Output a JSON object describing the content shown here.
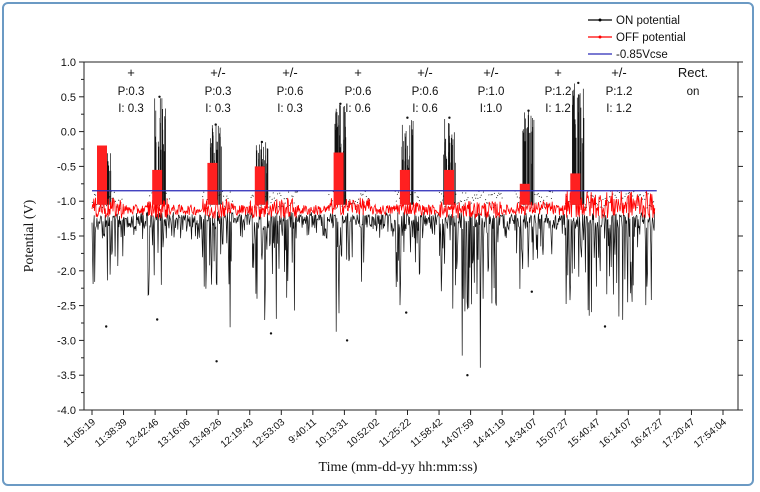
{
  "chart_data": {
    "type": "line",
    "xlabel": "Time (mm-dd-yy hh:mm:ss)",
    "ylabel": "Potential (V)",
    "ylim": [
      -4.0,
      1.0
    ],
    "yticks": [
      "1.0",
      "0.5",
      "0.0",
      "-0.5",
      "-1.0",
      "-1.5",
      "-2.0",
      "-2.5",
      "-3.0",
      "-3.5",
      "-4.0"
    ],
    "categories": [
      "11:05:19",
      "11:38:39",
      "12:42:46",
      "13:16:06",
      "13:49:26",
      "12:19:43",
      "12:53:03",
      "9:40:11",
      "10:13:31",
      "10:52:02",
      "11:25:22",
      "11:58:42",
      "14:07:59",
      "14:41:19",
      "14:34:07",
      "15:07:27",
      "15:40:47",
      "16:14:07",
      "16:47:27",
      "17:20:47",
      "17:54:04"
    ],
    "legend_position": "top-right",
    "series": [
      {
        "name": "ON potential",
        "color": "#000000",
        "segments": [
          {
            "label": "+",
            "from": 0.0,
            "to": 1.0,
            "upper": -1.05,
            "lower": -2.5,
            "spike_max": -0.25,
            "spike_min": -2.8
          },
          {
            "label": "+/-",
            "from": 1.75,
            "to": 2.45,
            "upper": -1.05,
            "lower": -2.4,
            "spike_max": 0.5,
            "spike_min": -2.7
          },
          {
            "label": "+/-",
            "from": 3.5,
            "to": 4.5,
            "upper": -1.1,
            "lower": -2.5,
            "spike_max": 0.1,
            "spike_min": -3.3
          },
          {
            "label": "+",
            "from": 5.0,
            "to": 6.5,
            "upper": -1.05,
            "lower": -2.5,
            "spike_max": -0.15,
            "spike_min": -2.9
          },
          {
            "label": "+/-",
            "from": 7.5,
            "to": 8.8,
            "upper": -1.1,
            "lower": -2.2,
            "spike_max": 0.4,
            "spike_min": -3.0
          },
          {
            "label": "+/-",
            "from": 9.6,
            "to": 10.4,
            "upper": -1.1,
            "lower": -2.3,
            "spike_max": 0.2,
            "spike_min": -2.6
          },
          {
            "label": "+",
            "from": 11.0,
            "to": 13.0,
            "upper": -1.05,
            "lower": -2.6,
            "spike_max": 0.2,
            "spike_min": -3.5
          },
          {
            "label": "+/-",
            "from": 13.4,
            "to": 14.6,
            "upper": -1.1,
            "lower": -2.0,
            "spike_max": 0.3,
            "spike_min": -2.3
          },
          {
            "label": "Rect. on",
            "from": 15.0,
            "to": 17.8,
            "upper": -0.8,
            "lower": -2.6,
            "spike_max": 0.7,
            "spike_min": -2.8
          }
        ]
      },
      {
        "name": "OFF potential",
        "color": "#ff0000",
        "segments": [
          {
            "from": 0.0,
            "to": 1.0,
            "upper": -0.95,
            "lower": -1.25,
            "peak": -0.2
          },
          {
            "from": 1.75,
            "to": 2.45,
            "upper": -0.95,
            "lower": -1.25,
            "peak": -0.55
          },
          {
            "from": 3.5,
            "to": 4.5,
            "upper": -0.95,
            "lower": -1.25,
            "peak": -0.45
          },
          {
            "from": 5.0,
            "to": 6.5,
            "upper": -0.95,
            "lower": -1.25,
            "peak": -0.5
          },
          {
            "from": 7.5,
            "to": 8.8,
            "upper": -0.95,
            "lower": -1.2,
            "peak": -0.3
          },
          {
            "from": 9.6,
            "to": 10.4,
            "upper": -1.0,
            "lower": -1.2,
            "peak": -0.55
          },
          {
            "from": 11.0,
            "to": 13.0,
            "upper": -1.0,
            "lower": -1.25,
            "peak": -0.55
          },
          {
            "from": 13.4,
            "to": 14.6,
            "upper": -1.0,
            "lower": -1.2,
            "peak": -0.75
          },
          {
            "from": 15.0,
            "to": 17.8,
            "upper": -0.85,
            "lower": -1.25,
            "peak": -0.6
          }
        ]
      },
      {
        "name": "-0.85Vcse",
        "color": "#2a2ab8",
        "value": -0.85
      }
    ],
    "annotations": [
      {
        "sign": "+",
        "p": "P:0.3",
        "i": "I: 0.3"
      },
      {
        "sign": "+/-",
        "p": "P:0.3",
        "i": "I: 0.3"
      },
      {
        "sign": "+/-",
        "p": "P:0.6",
        "i": "I: 0.3"
      },
      {
        "sign": "+",
        "p": "P:0.6",
        "i": "I: 0.6"
      },
      {
        "sign": "+/-",
        "p": "P:0.6",
        "i": "I: 0.6"
      },
      {
        "sign": "+/-",
        "p": "P:1.0",
        "i": "I:1.0"
      },
      {
        "sign": "+",
        "p": "P:1.2",
        "i": "I: 1.2"
      },
      {
        "sign": "+/-",
        "p": "P:1.2",
        "i": "I: 1.2"
      },
      {
        "sign": "Rect.",
        "p": "on",
        "i": ""
      }
    ]
  }
}
